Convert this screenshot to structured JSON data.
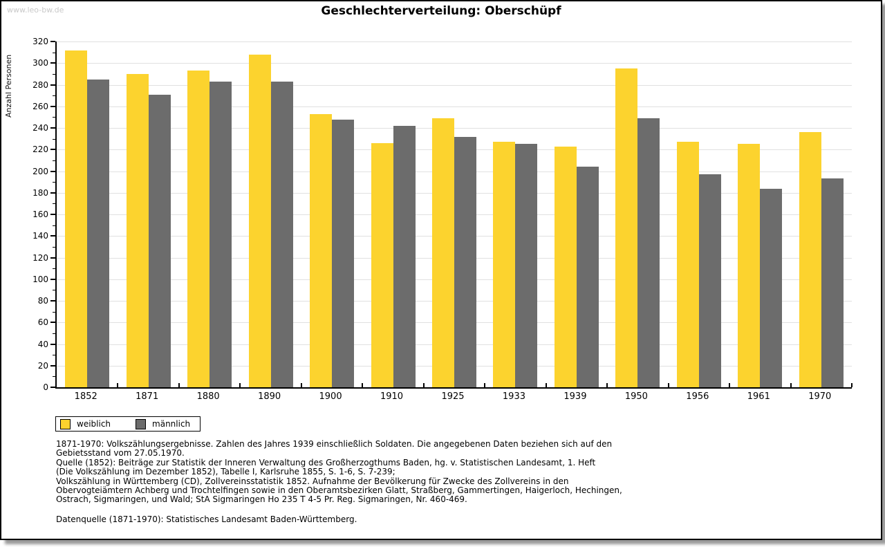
{
  "watermark": "www.leo-bw.de",
  "title": "Geschlechterverteilung: Oberschüpf",
  "colors": {
    "female_bar": "#fcd32e",
    "male_bar": "#6c6c6c",
    "gridline": "#e0e0e0",
    "axis": "#000000",
    "watermark": "#c9c9c9"
  },
  "chart_data": {
    "type": "bar",
    "title": "Geschlechterverteilung: Oberschüpf",
    "xlabel": "",
    "ylabel": "Anzahl Personen",
    "ylim": [
      0,
      320
    ],
    "ytick_step": 20,
    "grid": true,
    "legend_position": "bottom-left",
    "ytick_labels": [
      "0",
      "20",
      "40",
      "60",
      "80",
      "100",
      "120",
      "140",
      "160",
      "180",
      "200",
      "220",
      "240",
      "260",
      "280",
      "300",
      "320"
    ],
    "categories": [
      "1852",
      "1871",
      "1880",
      "1890",
      "1900",
      "1910",
      "1925",
      "1933",
      "1939",
      "1950",
      "1956",
      "1961",
      "1970"
    ],
    "series": [
      {
        "name": "weiblich",
        "color": "#fcd32e",
        "values": [
          312,
          290,
          293,
          308,
          253,
          226,
          249,
          227,
          223,
          295,
          227,
          225,
          236
        ]
      },
      {
        "name": "männlich",
        "color": "#6c6c6c",
        "values": [
          285,
          271,
          283,
          283,
          248,
          242,
          232,
          225,
          204,
          249,
          197,
          184,
          193
        ]
      }
    ]
  },
  "footnotes": {
    "lines": [
      "1871-1970: Volkszählungsergebnisse. Zahlen des Jahres 1939 einschließlich Soldaten. Die angegebenen Daten beziehen sich auf den",
      "Gebietsstand vom 27.05.1970.",
      "Quelle (1852): Beiträge zur Statistik der Inneren Verwaltung des Großherzogthums Baden, hg. v. Statistischen Landesamt, 1. Heft",
      "(Die Volkszählung im Dezember 1852), Tabelle I, Karlsruhe 1855, S. 1-6, S. 7-239;",
      "Volkszählung in Württemberg (CD), Zollvereinsstatistik 1852. Aufnahme der Bevölkerung für Zwecke des Zollvereins in den",
      "Obervogteiämtern Achberg und Trochtelfingen sowie in den Oberamtsbezirken Glatt, Straßberg, Gammertingen, Haigerloch, Hechingen,",
      "Ostrach, Sigmaringen, und Wald; StA Sigmaringen Ho 235 T 4-5 Pr. Reg. Sigmaringen, Nr. 460-469."
    ],
    "datasource": "Datenquelle (1871-1970): Statistisches Landesamt Baden-Württemberg."
  }
}
